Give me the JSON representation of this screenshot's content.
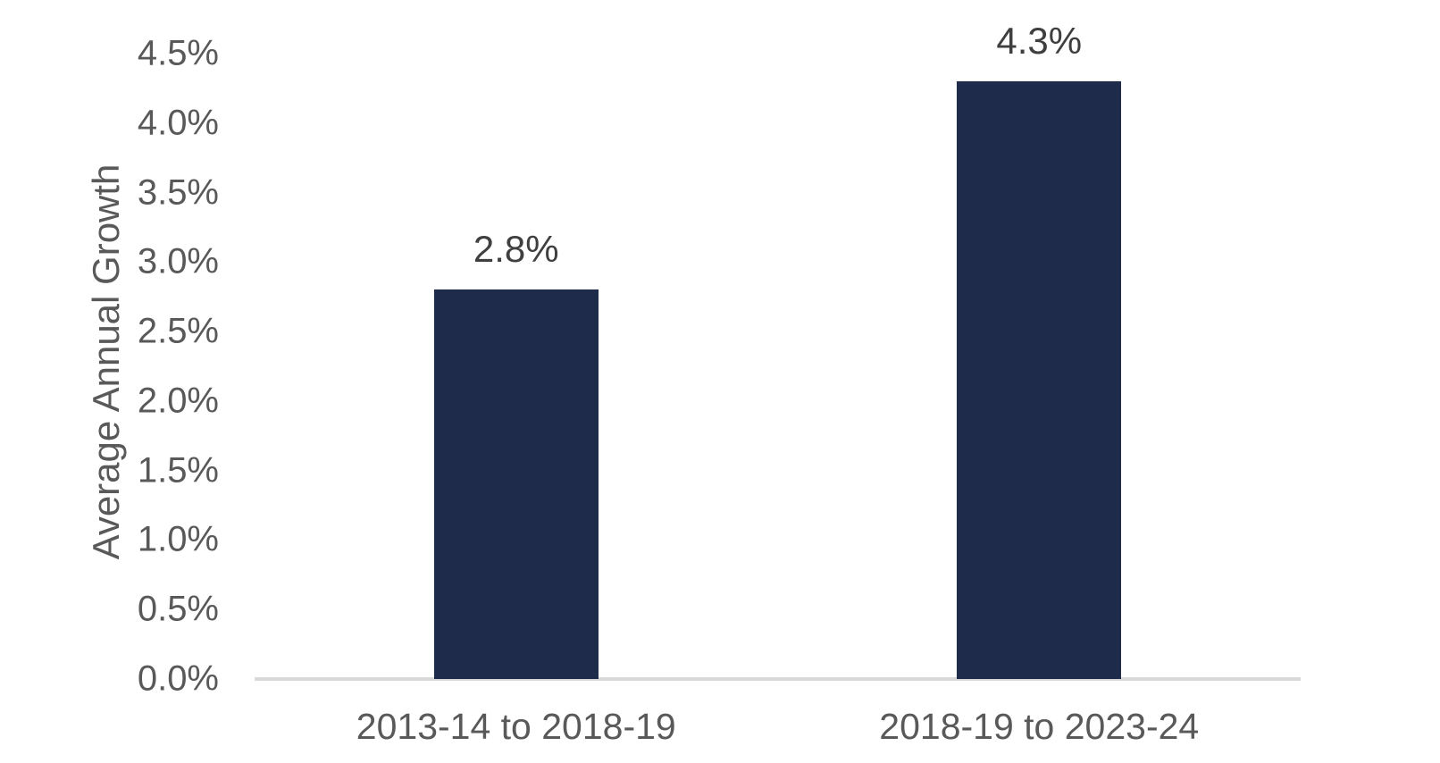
{
  "chart_data": {
    "type": "bar",
    "title": "",
    "xlabel": "",
    "ylabel": "Average Annual Growth",
    "categories": [
      "2013-14 to 2018-19",
      "2018-19 to 2023-24"
    ],
    "values": [
      2.8,
      4.3
    ],
    "data_labels": [
      "2.8%",
      "4.3%"
    ],
    "ytick_labels": [
      "0.0%",
      "0.5%",
      "1.0%",
      "1.5%",
      "2.0%",
      "2.5%",
      "3.0%",
      "3.5%",
      "4.0%",
      "4.5%"
    ],
    "ytick_values": [
      0.0,
      0.5,
      1.0,
      1.5,
      2.0,
      2.5,
      3.0,
      3.5,
      4.0,
      4.5
    ],
    "ylim": [
      0,
      4.5
    ],
    "grid": false,
    "legend": false,
    "colors": {
      "bar": "#1F2B4A",
      "axis_line": "#D9D9D9",
      "axis_text": "#595959",
      "data_label_text": "#3F3F3F",
      "background": "#FFFFFF"
    }
  }
}
